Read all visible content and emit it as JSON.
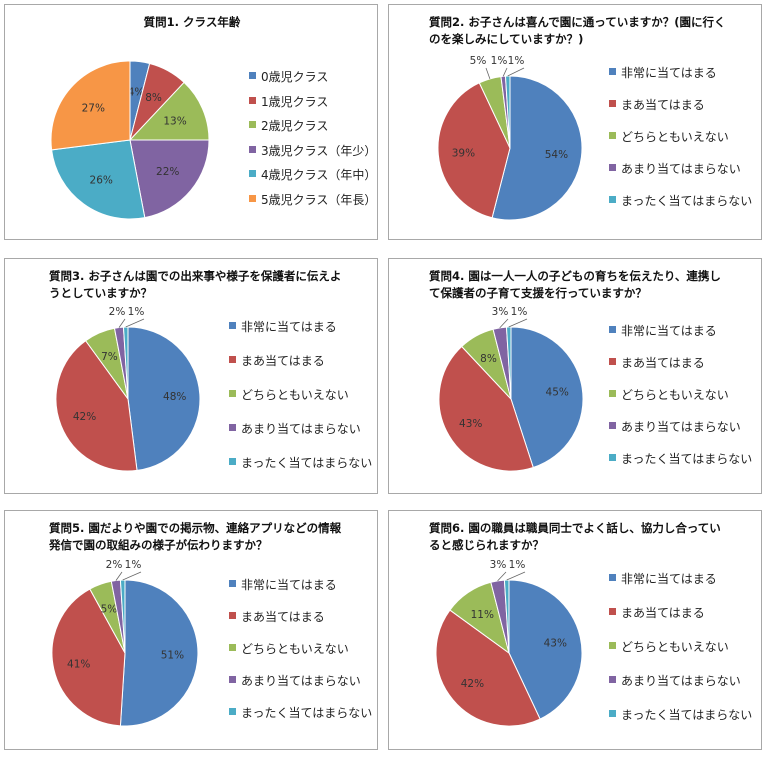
{
  "colors": {
    "blue": "#4F81BD",
    "red": "#C0504D",
    "green": "#9BBB59",
    "purple": "#8064A2",
    "cyan": "#4BACC6",
    "orange": "#F79646"
  },
  "chart_data": [
    {
      "type": "pie",
      "title": "質問1. クラス年齢",
      "categories": [
        "0歳児クラス",
        "1歳児クラス",
        "2歳児クラス",
        "3歳児クラス（年少）",
        "4歳児クラス（年中）",
        "5歳児クラス（年長）"
      ],
      "values": [
        4,
        8,
        13,
        22,
        26,
        27
      ],
      "labels": [
        "4%",
        "8%",
        "13%",
        "22%",
        "26%",
        "27%"
      ],
      "colors": [
        "#4F81BD",
        "#C0504D",
        "#9BBB59",
        "#8064A2",
        "#4BACC6",
        "#F79646"
      ],
      "legend": "right"
    },
    {
      "type": "pie",
      "title": "質問2. お子さんは喜んで園に通っていますか？(園に行くのを楽しみにしていますか？)",
      "categories": [
        "非常に当てはまる",
        "まあ当てはまる",
        "どちらともいえない",
        "あまり当てはまらない",
        "まったく当てはまらない"
      ],
      "values": [
        54,
        39,
        5,
        1,
        1
      ],
      "labels": [
        "54%",
        "39%",
        "5%",
        "1%",
        "1%"
      ],
      "colors": [
        "#4F81BD",
        "#C0504D",
        "#9BBB59",
        "#8064A2",
        "#4BACC6"
      ],
      "legend": "right"
    },
    {
      "type": "pie",
      "title": "質問3. お子さんは園での出来事や様子を保護者に伝えようとしていますか？",
      "categories": [
        "非常に当てはまる",
        "まあ当てはまる",
        "どちらともいえない",
        "あまり当てはまらない",
        "まったく当てはまらない"
      ],
      "values": [
        48,
        42,
        7,
        2,
        1
      ],
      "labels": [
        "48%",
        "42%",
        "7%",
        "2%",
        "1%"
      ],
      "colors": [
        "#4F81BD",
        "#C0504D",
        "#9BBB59",
        "#8064A2",
        "#4BACC6"
      ],
      "legend": "right"
    },
    {
      "type": "pie",
      "title": "質問4. 園は一人一人の子どもの育ちを伝えたり、連携して保護者の子育て支援を行っていますか？",
      "categories": [
        "非常に当てはまる",
        "まあ当てはまる",
        "どちらともいえない",
        "あまり当てはまらない",
        "まったく当てはまらない"
      ],
      "values": [
        45,
        43,
        8,
        3,
        1
      ],
      "labels": [
        "45%",
        "43%",
        "8%",
        "3%",
        "1%"
      ],
      "colors": [
        "#4F81BD",
        "#C0504D",
        "#9BBB59",
        "#8064A2",
        "#4BACC6"
      ],
      "legend": "right"
    },
    {
      "type": "pie",
      "title": "質問5. 園だよりや園での掲示物、連絡アプリなどの情報発信で園の取組みの様子が伝わりますか？",
      "categories": [
        "非常に当てはまる",
        "まあ当てはまる",
        "どちらともいえない",
        "あまり当てはまらない",
        "まったく当てはまらない"
      ],
      "values": [
        51,
        41,
        5,
        2,
        1
      ],
      "labels": [
        "51%",
        "41%",
        "5%",
        "2%",
        "1%"
      ],
      "colors": [
        "#4F81BD",
        "#C0504D",
        "#9BBB59",
        "#8064A2",
        "#4BACC6"
      ],
      "legend": "right"
    },
    {
      "type": "pie",
      "title": "質問6. 園の職員は職員同士でよく話し、協力し合っていると感じられますか？",
      "categories": [
        "非常に当てはまる",
        "まあ当てはまる",
        "どちらともいえない",
        "あまり当てはまらない",
        "まったく当てはまらない"
      ],
      "values": [
        43,
        42,
        11,
        3,
        1
      ],
      "labels": [
        "43%",
        "42%",
        "11%",
        "3%",
        "1%"
      ],
      "colors": [
        "#4F81BD",
        "#C0504D",
        "#9BBB59",
        "#8064A2",
        "#4BACC6"
      ],
      "legend": "right"
    }
  ]
}
